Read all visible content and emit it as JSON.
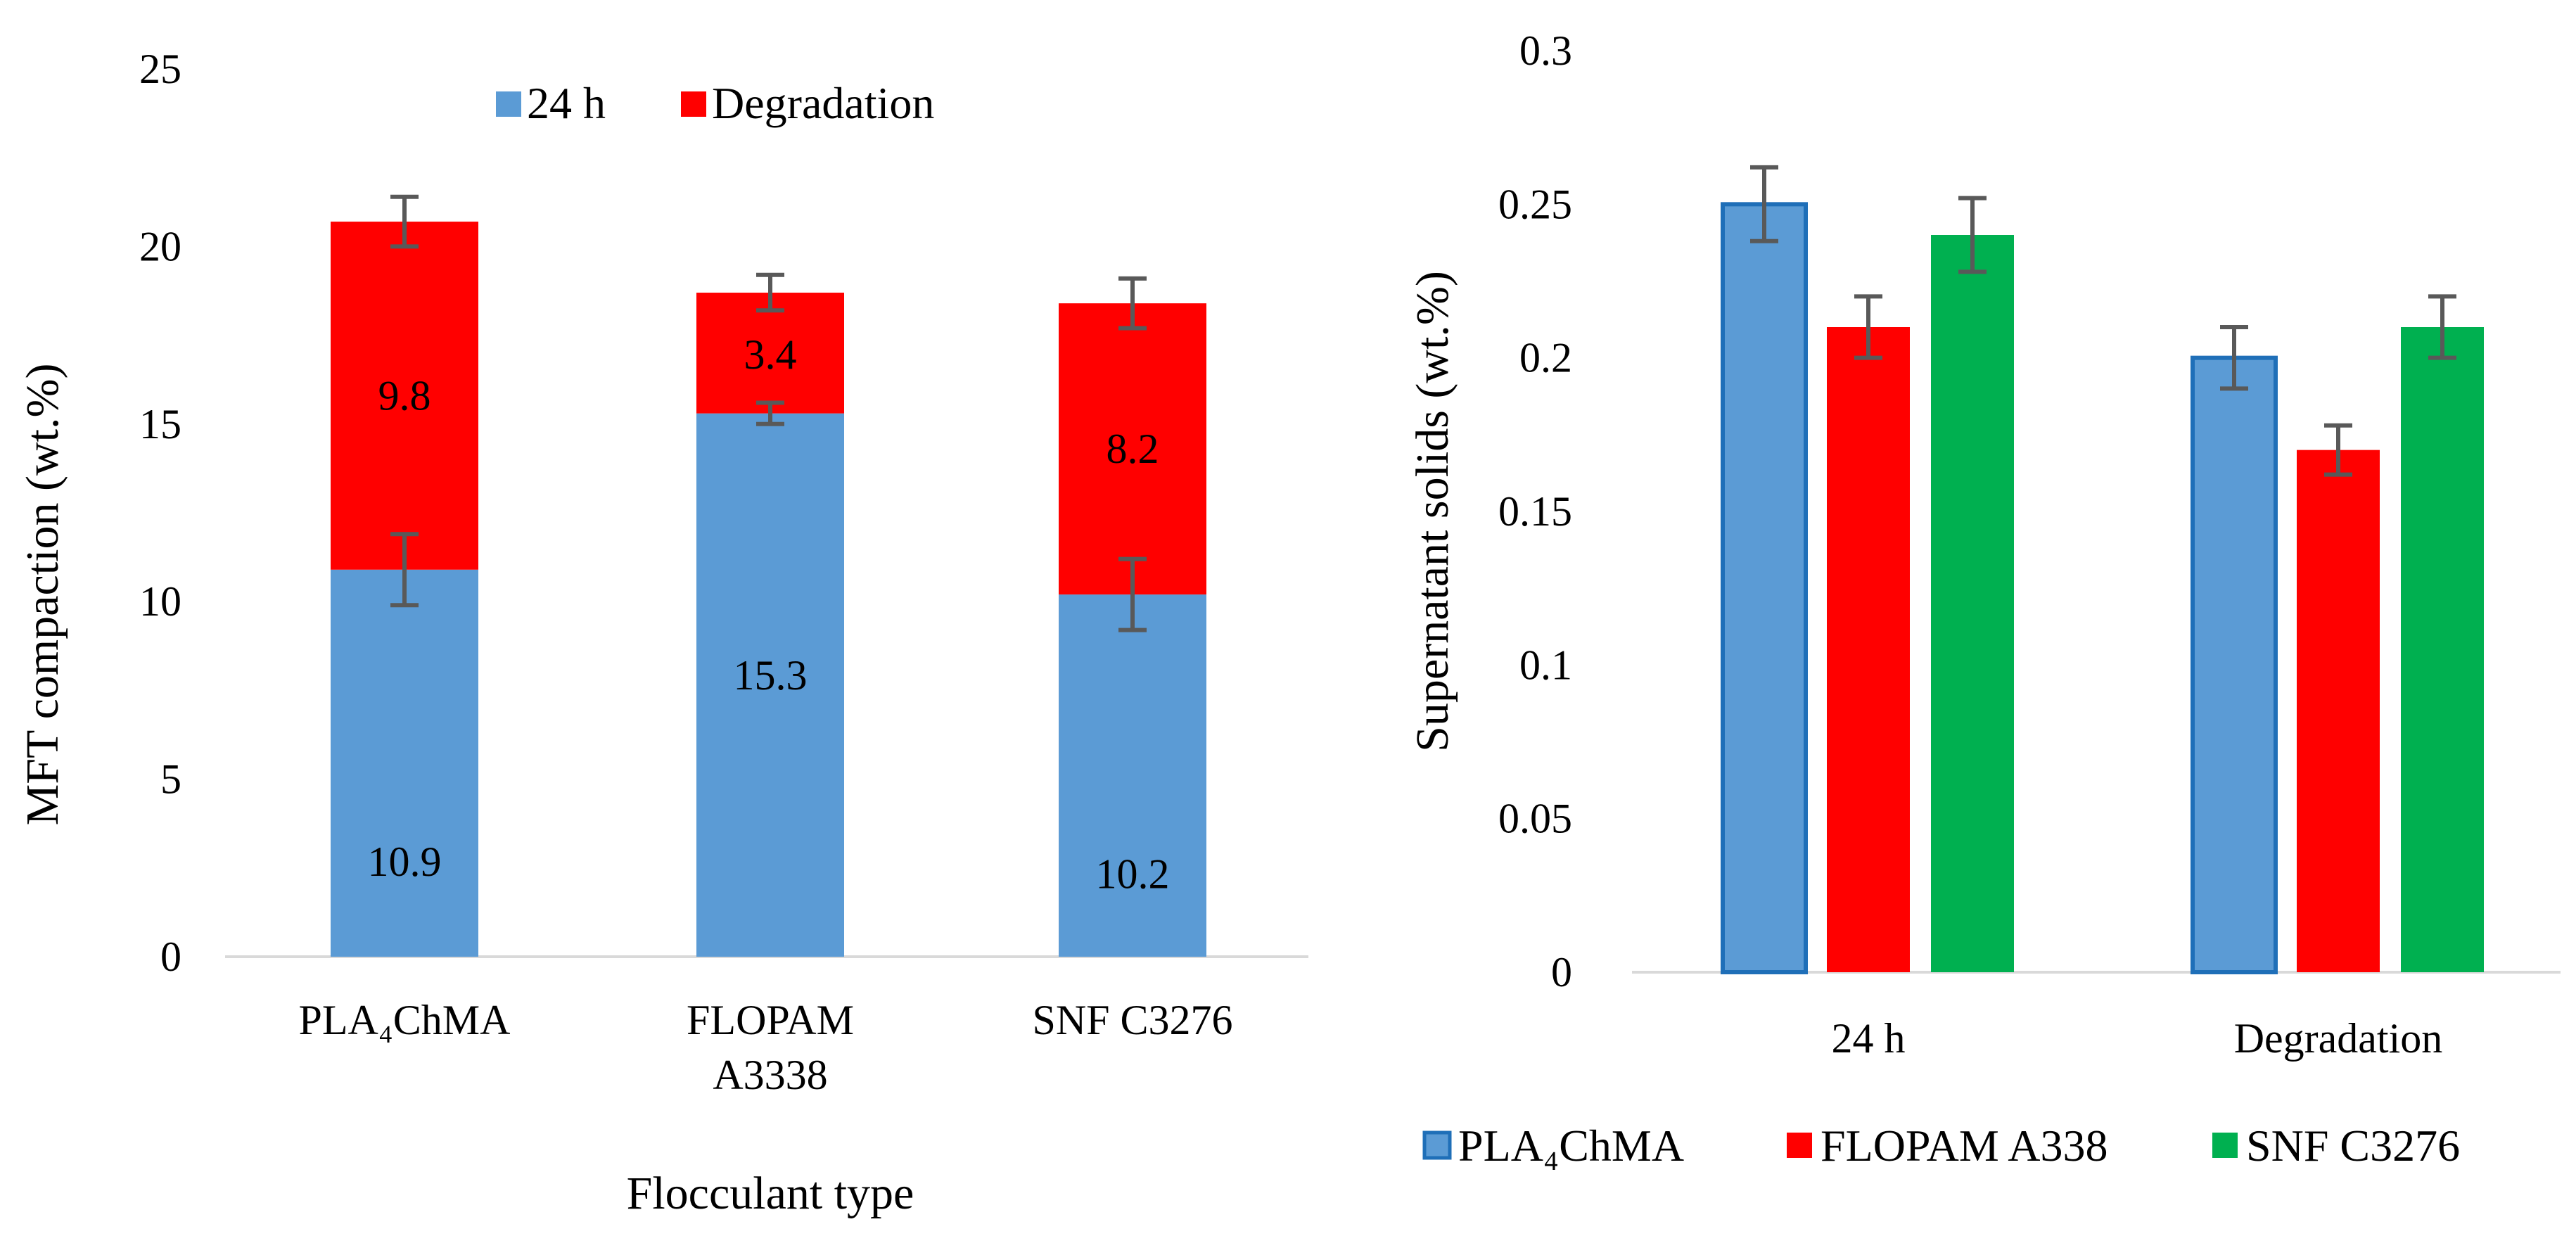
{
  "colors": {
    "blue": "#5B9BD5",
    "blue_border": "#1F6FB8",
    "red": "#FF0000",
    "green": "#00B050",
    "error": "#595959",
    "axis": "#D9D9D9"
  },
  "chart_data": [
    {
      "type": "bar",
      "stacked": true,
      "title": "",
      "xlabel": "Flocculant type",
      "ylabel": "MFT compaction (wt.%)",
      "ylim": [
        0,
        25
      ],
      "yticks": [
        "0",
        "5",
        "10",
        "15",
        "20",
        "25"
      ],
      "categories": [
        "PLA₄ChMA",
        "FLOPAM A3338",
        "SNF C3276"
      ],
      "category_lines": [
        [
          "PLA₄ChMA"
        ],
        [
          "FLOPAM",
          "A3338"
        ],
        [
          "SNF C3276"
        ]
      ],
      "series": [
        {
          "name": "24 h",
          "values": [
            10.9,
            15.3,
            10.2
          ],
          "labels": [
            "10.9",
            "15.3",
            "10.2"
          ],
          "errors": [
            1.0,
            0.3,
            1.0
          ],
          "color": "#5B9BD5"
        },
        {
          "name": "Degradation",
          "values": [
            9.8,
            3.4,
            8.2
          ],
          "labels": [
            "9.8",
            "3.4",
            "8.2"
          ],
          "errors": [
            0.7,
            0.5,
            0.7
          ],
          "color": "#FF0000"
        }
      ],
      "legend": [
        "24 h",
        "Degradation"
      ],
      "legend_position": "top-center"
    },
    {
      "type": "bar",
      "stacked": false,
      "title": "",
      "xlabel": "",
      "ylabel": "Supernatant solids (wt.%)",
      "ylim": [
        0,
        0.3
      ],
      "yticks": [
        "0",
        "0.05",
        "0.1",
        "0.15",
        "0.2",
        "0.25",
        "0.3"
      ],
      "categories": [
        "24 h",
        "Degradation"
      ],
      "series": [
        {
          "name": "PLA₄ChMA",
          "values": [
            0.25,
            0.2
          ],
          "errors": [
            0.012,
            0.01
          ],
          "color": "#5B9BD5"
        },
        {
          "name": "FLOPAM A338",
          "values": [
            0.21,
            0.17
          ],
          "errors": [
            0.01,
            0.008
          ],
          "color": "#FF0000"
        },
        {
          "name": "SNF C3276",
          "values": [
            0.24,
            0.21
          ],
          "errors": [
            0.012,
            0.01
          ],
          "color": "#00B050"
        }
      ],
      "legend": [
        "PLA₄ChMA",
        "FLOPAM A338",
        "SNF C3276"
      ],
      "legend_position": "bottom-center"
    }
  ]
}
